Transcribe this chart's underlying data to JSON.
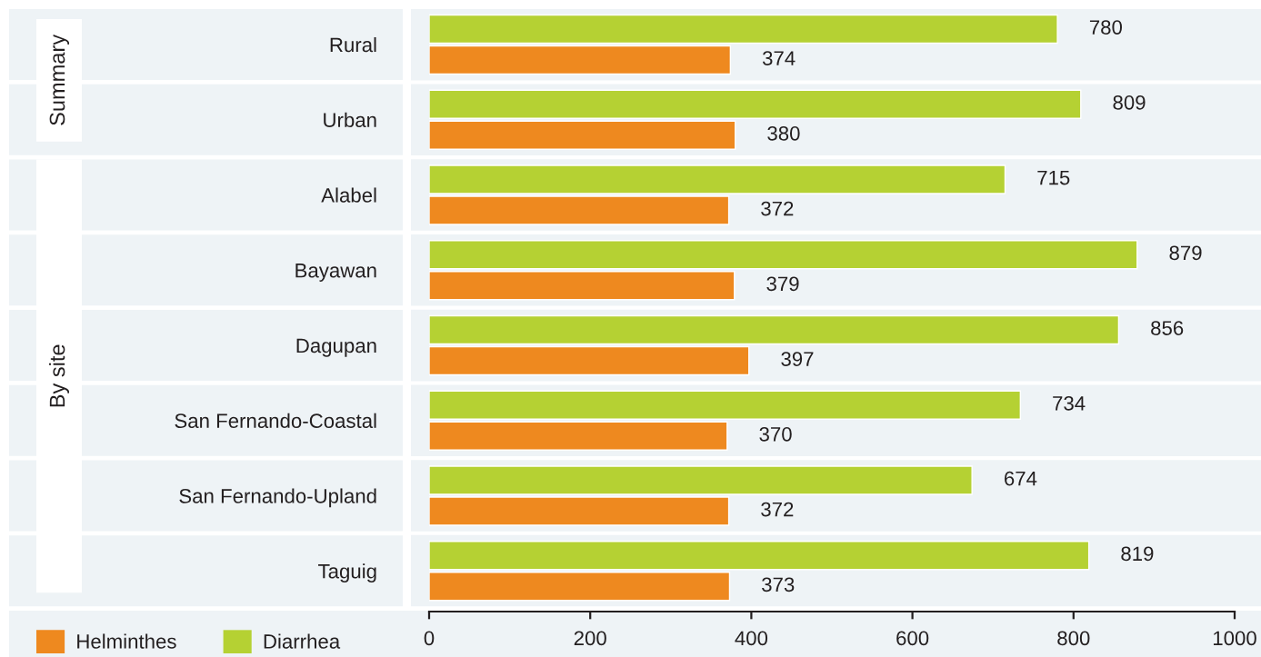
{
  "chart_data": {
    "type": "bar",
    "orientation": "horizontal",
    "categories": [
      "Rural",
      "Urban",
      "Alabel",
      "Bayawan",
      "Dagupan",
      "San Fernando-Coastal",
      "San Fernando-Upland",
      "Taguig"
    ],
    "series": [
      {
        "name": "Helminthes",
        "color": "#ee891f",
        "values": [
          374,
          380,
          372,
          379,
          397,
          370,
          372,
          373
        ]
      },
      {
        "name": "Diarrhea",
        "color": "#b5d133",
        "values": [
          780,
          809,
          715,
          879,
          856,
          734,
          674,
          819
        ]
      }
    ],
    "xlim": [
      0,
      1000
    ],
    "xticks": [
      0,
      200,
      400,
      600,
      800,
      1000
    ],
    "data_labels": true,
    "legend": "bottom left",
    "grid": false,
    "annotations": [
      "Summary",
      "By site"
    ]
  }
}
